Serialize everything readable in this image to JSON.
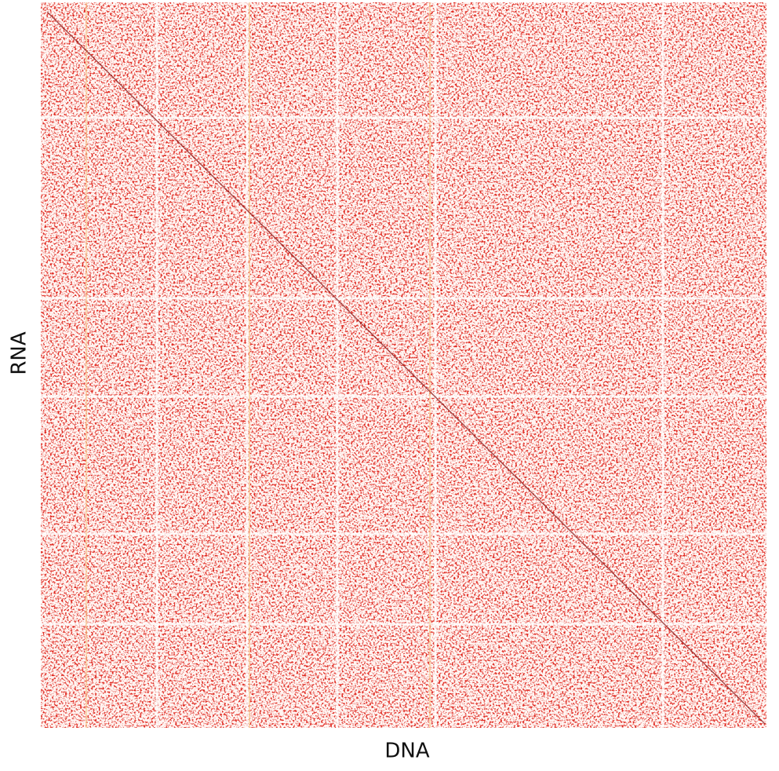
{
  "chart_data": {
    "type": "heatmap",
    "xlabel": "DNA",
    "ylabel": "RNA",
    "color": "#e02a24"
  }
}
